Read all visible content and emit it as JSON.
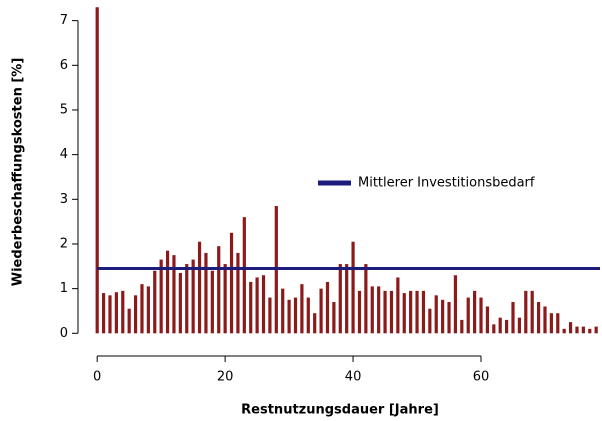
{
  "chart_data": {
    "type": "bar",
    "x_label": "Restnutzungsdauer [Jahre]",
    "y_label": "Wiederbeschaffungskosten [%]",
    "x": [
      0,
      1,
      2,
      3,
      4,
      5,
      6,
      7,
      8,
      9,
      10,
      11,
      12,
      13,
      14,
      15,
      16,
      17,
      18,
      19,
      20,
      21,
      22,
      23,
      24,
      25,
      26,
      27,
      28,
      29,
      30,
      31,
      32,
      33,
      34,
      35,
      36,
      37,
      38,
      39,
      40,
      41,
      42,
      43,
      44,
      45,
      46,
      47,
      48,
      49,
      50,
      51,
      52,
      53,
      54,
      55,
      56,
      57,
      58,
      59,
      60,
      61,
      62,
      63,
      64,
      65,
      66,
      67,
      68,
      69,
      70,
      71,
      72,
      73,
      74,
      75,
      76,
      77,
      78
    ],
    "values": [
      7.3,
      0.9,
      0.85,
      0.92,
      0.95,
      0.55,
      0.85,
      1.1,
      1.05,
      1.4,
      1.65,
      1.85,
      1.75,
      1.35,
      1.55,
      1.65,
      2.05,
      1.8,
      1.4,
      1.95,
      1.55,
      2.25,
      1.8,
      2.6,
      1.15,
      1.25,
      1.3,
      0.8,
      2.85,
      1.0,
      0.75,
      0.8,
      1.1,
      0.8,
      0.45,
      1.0,
      1.15,
      0.7,
      1.55,
      1.55,
      2.05,
      0.95,
      1.55,
      1.05,
      1.05,
      0.95,
      0.95,
      1.25,
      0.9,
      0.95,
      0.95,
      0.95,
      0.55,
      0.85,
      0.75,
      0.7,
      1.3,
      0.3,
      0.8,
      0.95,
      0.8,
      0.6,
      0.2,
      0.35,
      0.3,
      0.7,
      0.35,
      0.95,
      0.95,
      0.7,
      0.6,
      0.45,
      0.45,
      0.1,
      0.25,
      0.15,
      0.15,
      0.1,
      0.15
    ],
    "color": "#8b1a1a",
    "mean_line": {
      "name": "Mittlerer Investitionsbedarf",
      "value": 1.45,
      "color": "#1c1c7c"
    },
    "xlim": [
      -3,
      78.6
    ],
    "xticks": [
      0,
      20,
      40,
      60
    ],
    "ylim": [
      -0.15,
      7.35
    ],
    "yticks": [
      0,
      1,
      2,
      3,
      4,
      5,
      6,
      7
    ]
  }
}
